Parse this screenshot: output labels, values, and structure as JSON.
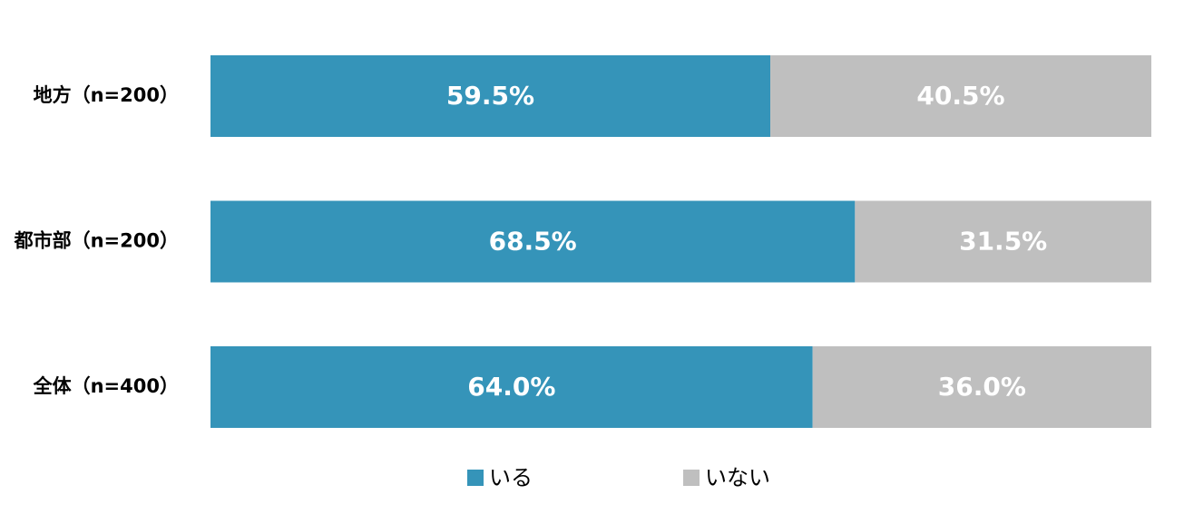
{
  "chart_data": {
    "type": "bar",
    "orientation": "horizontal",
    "stacked": true,
    "normalized_percent": true,
    "categories": [
      "地方（n=200）",
      "都市部（n=200）",
      "全体（n=400）"
    ],
    "series": [
      {
        "name": "いる",
        "color": "#3594b9",
        "values": [
          59.5,
          68.5,
          64.0
        ],
        "labels": [
          "59.5%",
          "68.5%",
          "64.0%"
        ]
      },
      {
        "name": "いない",
        "color": "#bfbfbf",
        "values": [
          40.5,
          31.5,
          36.0
        ],
        "labels": [
          "40.5%",
          "31.5%",
          "36.0%"
        ]
      }
    ],
    "xlim": [
      0,
      100
    ],
    "grid": false,
    "legend_position": "bottom"
  }
}
